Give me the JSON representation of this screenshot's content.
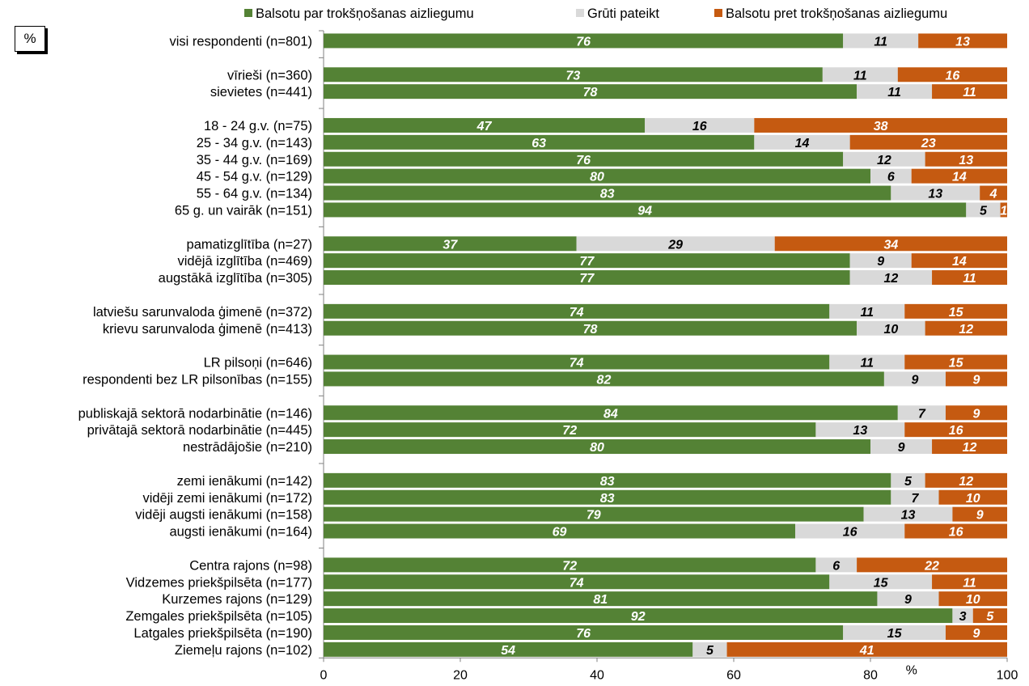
{
  "unit_box": "%",
  "colors": {
    "for": "#548235",
    "unsure": "#d9d9d9",
    "against": "#c55a11"
  },
  "chart_data": {
    "type": "bar",
    "orientation": "horizontal",
    "stacked": true,
    "xlim": [
      0,
      100
    ],
    "x_ticks": [
      "0",
      "20",
      "40",
      "60",
      "80",
      "100"
    ],
    "xlabel": "%",
    "legend_position": "top",
    "series": [
      {
        "name": "Balsotu par trokšņošanas aizliegumu",
        "color": "#548235",
        "label_color": "#ffffff",
        "values": [
          76,
          73,
          78,
          47,
          63,
          76,
          80,
          83,
          94,
          37,
          77,
          77,
          74,
          78,
          74,
          82,
          84,
          72,
          80,
          83,
          83,
          79,
          69,
          72,
          74,
          81,
          92,
          76,
          54
        ]
      },
      {
        "name": "Grūti pateikt",
        "color": "#d9d9d9",
        "label_color": "#000000",
        "values": [
          11,
          11,
          11,
          16,
          14,
          12,
          6,
          13,
          5,
          29,
          9,
          12,
          11,
          10,
          11,
          9,
          7,
          13,
          9,
          5,
          7,
          13,
          16,
          6,
          15,
          9,
          3,
          15,
          5
        ]
      },
      {
        "name": "Balsotu pret trokšņošanas aizliegumu",
        "color": "#c55a11",
        "label_color": "#ffffff",
        "values": [
          13,
          16,
          11,
          38,
          23,
          13,
          14,
          4,
          1,
          34,
          14,
          11,
          15,
          12,
          15,
          9,
          9,
          16,
          12,
          12,
          10,
          9,
          16,
          22,
          11,
          10,
          5,
          9,
          41
        ]
      }
    ],
    "bar_labels": [
      [
        "76",
        "11",
        "13"
      ],
      [
        "73",
        "11",
        "16"
      ],
      [
        "78",
        "11",
        "11"
      ],
      [
        "47",
        "16",
        "38"
      ],
      [
        "63",
        "14",
        "23"
      ],
      [
        "76",
        "12",
        "13"
      ],
      [
        "80",
        "6",
        "14"
      ],
      [
        "83",
        "13",
        "4"
      ],
      [
        "94",
        "5",
        "1"
      ],
      [
        "37",
        "29",
        "34"
      ],
      [
        "77",
        "9",
        "14"
      ],
      [
        "77",
        "12",
        "11"
      ],
      [
        "74",
        "11",
        "15"
      ],
      [
        "78",
        "10",
        "12"
      ],
      [
        "74",
        "11",
        "15"
      ],
      [
        "82",
        "9",
        "9"
      ],
      [
        "84",
        "7",
        "9"
      ],
      [
        "72",
        "13",
        "16"
      ],
      [
        "80",
        "9",
        "12"
      ],
      [
        "83",
        "5",
        "12"
      ],
      [
        "83",
        "7",
        "10"
      ],
      [
        "79",
        "13",
        "9"
      ],
      [
        "69",
        "16",
        "16"
      ],
      [
        "72",
        "6",
        "22"
      ],
      [
        "74",
        "15",
        "11"
      ],
      [
        "81",
        "9",
        "10"
      ],
      [
        "92",
        "3",
        "5"
      ],
      [
        "76",
        "15",
        "9"
      ],
      [
        "54",
        "5",
        "41"
      ]
    ],
    "groups": [
      [
        "visi respondenti (n=801)"
      ],
      [
        "vīrieši (n=360)",
        "sievietes (n=441)"
      ],
      [
        "18 - 24 g.v. (n=75)",
        "25 - 34 g.v. (n=143)",
        "35 - 44 g.v. (n=169)",
        "45 - 54 g.v. (n=129)",
        "55 - 64 g.v. (n=134)",
        "65 g. un vairāk (n=151)"
      ],
      [
        "pamatizglītība (n=27)",
        "vidējā izglītība (n=469)",
        "augstākā izglītība (n=305)"
      ],
      [
        "latviešu sarunvaloda ģimenē (n=372)",
        "krievu sarunvaloda ģimenē (n=413)"
      ],
      [
        "LR pilsoņi (n=646)",
        "respondenti bez LR pilsonības (n=155)"
      ],
      [
        "publiskajā sektorā nodarbinātie (n=146)",
        "privātajā sektorā nodarbinātie (n=445)",
        "nestrādājošie (n=210)"
      ],
      [
        "zemi ienākumi (n=142)",
        "vidēji zemi ienākumi (n=172)",
        "vidēji augsti ienākumi (n=158)",
        "augsti ienākumi (n=164)"
      ],
      [
        "Centra rajons (n=98)",
        "Vidzemes priekšpilsēta (n=177)",
        "Kurzemes rajons (n=129)",
        "Zemgales priekšpilsēta (n=105)",
        "Latgales priekšpilsēta (n=190)",
        "Ziemeļu rajons (n=102)"
      ]
    ]
  }
}
